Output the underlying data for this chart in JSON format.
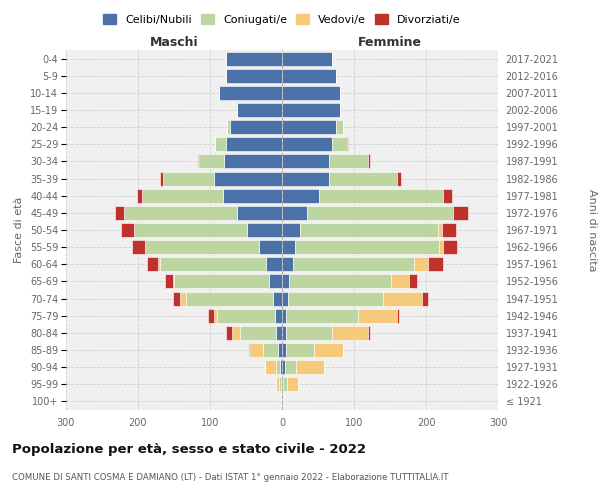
{
  "age_groups": [
    "100+",
    "95-99",
    "90-94",
    "85-89",
    "80-84",
    "75-79",
    "70-74",
    "65-69",
    "60-64",
    "55-59",
    "50-54",
    "45-49",
    "40-44",
    "35-39",
    "30-34",
    "25-29",
    "20-24",
    "15-19",
    "10-14",
    "5-9",
    "0-4"
  ],
  "birth_years": [
    "≤ 1921",
    "1922-1926",
    "1927-1931",
    "1932-1936",
    "1937-1941",
    "1942-1946",
    "1947-1951",
    "1952-1956",
    "1957-1961",
    "1962-1966",
    "1967-1971",
    "1972-1976",
    "1977-1981",
    "1982-1986",
    "1987-1991",
    "1992-1996",
    "1997-2001",
    "2002-2006",
    "2007-2011",
    "2012-2016",
    "2017-2021"
  ],
  "colors": {
    "celibi": "#4a72a8",
    "coniugati": "#bdd5a0",
    "vedovi": "#f5ca7a",
    "divorziati": "#c0312b"
  },
  "maschi": {
    "celibi": [
      1,
      2,
      3,
      6,
      8,
      10,
      12,
      18,
      22,
      32,
      48,
      62,
      82,
      95,
      80,
      78,
      72,
      62,
      88,
      78,
      78
    ],
    "coniugati": [
      0,
      2,
      5,
      20,
      50,
      80,
      122,
      132,
      148,
      158,
      158,
      158,
      112,
      70,
      35,
      15,
      5,
      0,
      0,
      0,
      0
    ],
    "vedovi": [
      0,
      5,
      15,
      18,
      12,
      5,
      8,
      2,
      2,
      0,
      0,
      0,
      0,
      0,
      0,
      0,
      0,
      0,
      0,
      0,
      0
    ],
    "divorziati": [
      0,
      0,
      0,
      2,
      8,
      8,
      10,
      10,
      15,
      18,
      18,
      12,
      8,
      5,
      2,
      0,
      0,
      0,
      0,
      0,
      0
    ]
  },
  "femmine": {
    "celibi": [
      1,
      2,
      4,
      5,
      5,
      5,
      8,
      10,
      15,
      18,
      25,
      35,
      52,
      65,
      65,
      70,
      75,
      80,
      80,
      75,
      70
    ],
    "coniugati": [
      0,
      5,
      15,
      40,
      65,
      100,
      132,
      142,
      168,
      200,
      192,
      202,
      172,
      95,
      55,
      20,
      10,
      0,
      0,
      0,
      0
    ],
    "vedovi": [
      2,
      15,
      40,
      40,
      50,
      55,
      55,
      25,
      20,
      5,
      5,
      0,
      0,
      0,
      0,
      0,
      0,
      0,
      0,
      0,
      0
    ],
    "divorziati": [
      0,
      0,
      0,
      0,
      2,
      2,
      8,
      10,
      20,
      20,
      20,
      22,
      12,
      5,
      2,
      2,
      0,
      0,
      0,
      0,
      0
    ]
  },
  "xlim": 300,
  "title": "Popolazione per età, sesso e stato civile - 2022",
  "subtitle": "COMUNE DI SANTI COSMA E DAMIANO (LT) - Dati ISTAT 1° gennaio 2022 - Elaborazione TUTTITALIA.IT",
  "maschi_label": "Maschi",
  "femmine_label": "Femmine",
  "ylabel": "Fasce di età",
  "ylabel2": "Anni di nascita",
  "legend_labels": [
    "Celibi/Nubili",
    "Coniugati/e",
    "Vedovi/e",
    "Divorziati/e"
  ],
  "bg_color": "#f0f0f0",
  "grid_color": "#cccccc"
}
